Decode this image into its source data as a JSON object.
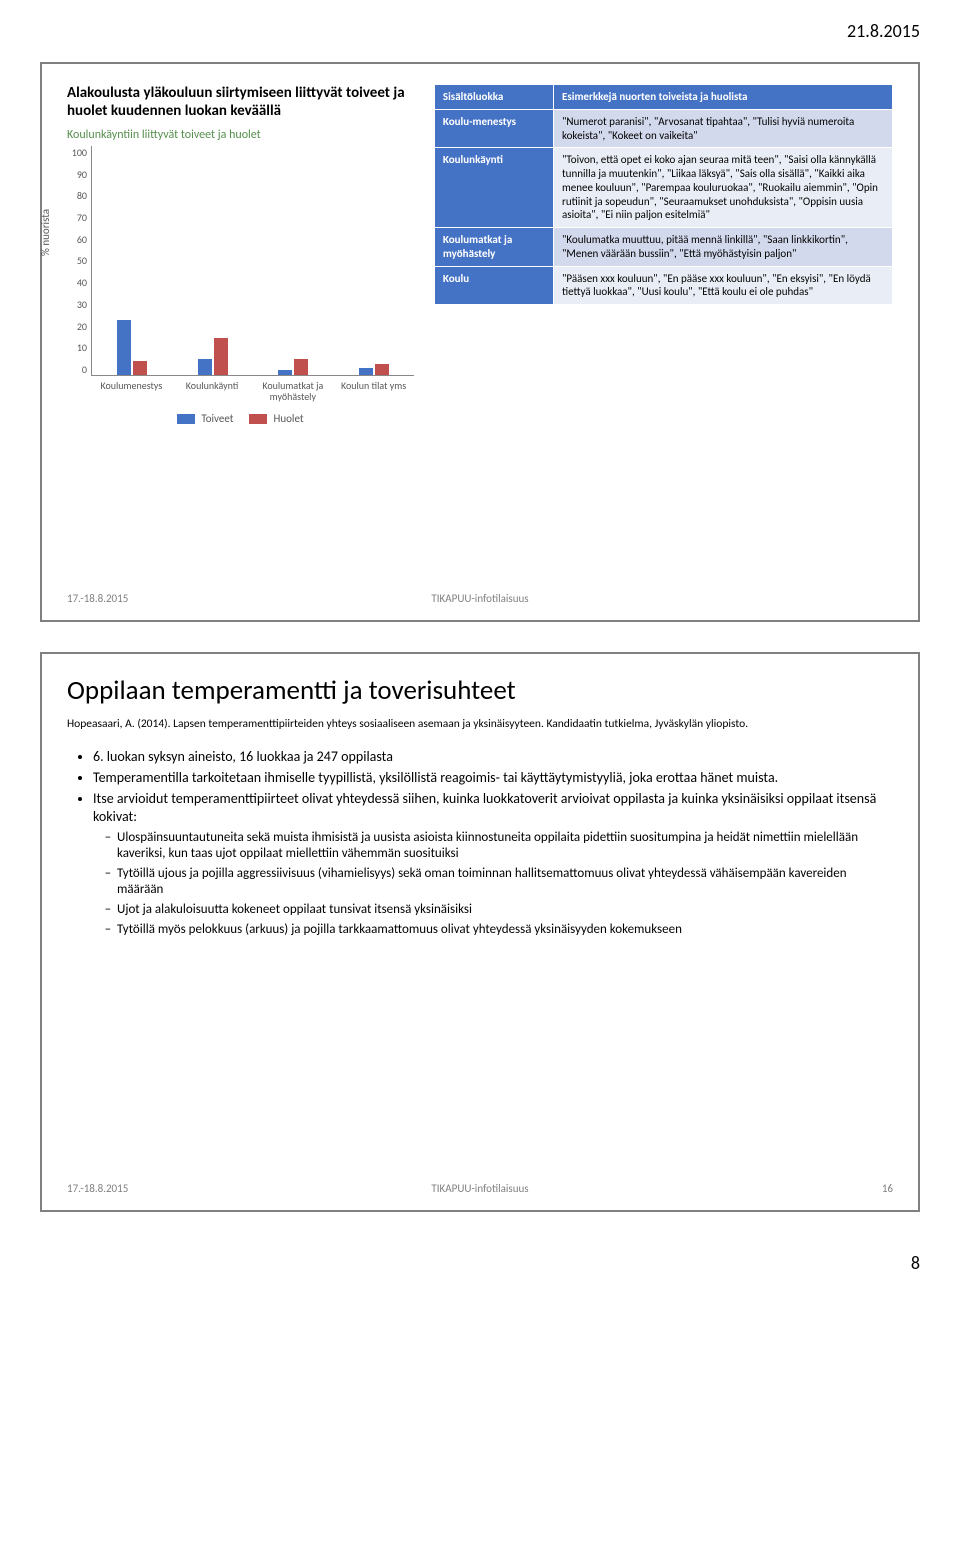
{
  "header_date": "21.8.2015",
  "page_number": "8",
  "slide1": {
    "footer_date": "17.-18.8.2015",
    "footer_center": "TIKAPUU-infotilaisuus",
    "chart": {
      "title": "Alakoulusta yläkouluun siirtymiseen liittyvät toiveet ja huolet kuudennen luokan keväällä",
      "subtitle": "Koulunkäyntiin liittyvät toiveet ja huolet",
      "ylabel": "% nuorista",
      "ylim_max": 100,
      "ytick_step": 10,
      "categories": [
        "Koulumenestys",
        "Koulunkäynti",
        "Koulumatkat ja myöhästely",
        "Koulun tilat yms"
      ],
      "series": [
        {
          "name": "Toiveet",
          "color_class": "blue",
          "color": "#4472c4",
          "values": [
            24,
            7,
            2,
            3
          ]
        },
        {
          "name": "Huolet",
          "color_class": "red",
          "color": "#c0504d",
          "values": [
            6,
            16,
            7,
            5
          ]
        }
      ]
    },
    "table": {
      "header": [
        "Sisältöluokka",
        "Esimerkkejä nuorten toiveista ja huolista"
      ],
      "rows": [
        {
          "k": "Koulu-menestys",
          "v": "\"Numerot paranisi\", \"Arvosanat tipahtaa\", \"Tulisi hyviä numeroita kokeista\", \"Kokeet on vaikeita\""
        },
        {
          "k": "Koulunkäynti",
          "v": "\"Toivon, että opet ei koko ajan seuraa mitä teen\", \"Saisi olla kännykällä tunnilla ja muutenkin\", \"Liikaa läksyä\", \"Sais olla sisällä\", \"Kaikki aika menee kouluun\", \"Parempaa kouluruokaa\", \"Ruokailu aiemmin\", \"Opin rutiinit ja sopeudun\", \"Seuraamukset unohduksista\", \"Oppisin uusia asioita\", \"Ei niin paljon esitelmiä\""
        },
        {
          "k": "Koulumatkat ja myöhästely",
          "v": "\"Koulumatka muuttuu, pitää mennä linkillä\", \"Saan linkkikortin\", \"Menen väärään bussiin\", \"Että myöhästyisin paljon\""
        },
        {
          "k": "Koulu",
          "v": "\"Pääsen xxx kouluun\", \"En pääse xxx kouluun\", \"En eksyisi\", \"En löydä tiettyä luokkaa\", \"Uusi koulu\", \"Että koulu ei ole puhdas\""
        }
      ]
    }
  },
  "slide2": {
    "title": "Oppilaan temperamentti ja toverisuhteet",
    "cite": "Hopeasaari, A. (2014). Lapsen temperamenttipiirteiden yhteys sosiaaliseen asemaan ja yksinäisyyteen. Kandidaatin tutkielma, Jyväskylän yliopisto.",
    "bullets": [
      "6. luokan syksyn aineisto, 16 luokkaa ja 247 oppilasta",
      "Temperamentilla tarkoitetaan ihmiselle tyypillistä, yksilöllistä reagoimis- tai käyttäytymistyyliä, joka erottaa hänet muista.",
      "Itse arvioidut temperamenttipiirteet olivat yhteydessä siihen, kuinka luokkatoverit arvioivat oppilasta ja kuinka yksinäisiksi oppilaat itsensä kokivat:"
    ],
    "subbullets": [
      "Ulospäinsuuntautuneita sekä muista ihmisistä ja uusista asioista kiinnostuneita oppilaita pidettiin suositumpina ja heidät nimettiin mielellään kaveriksi, kun taas ujot oppilaat miellettiin vähemmän suosituiksi",
      "Tytöillä ujous ja pojilla aggressiivisuus (vihamielisyys) sekä oman toiminnan hallitsemattomuus olivat yhteydessä vähäisempään kavereiden määrään",
      "Ujot ja alakuloisuutta kokeneet oppilaat tunsivat itsensä yksinäisiksi",
      "Tytöillä myös pelokkuus (arkuus) ja pojilla tarkkaamattomuus olivat yhteydessä yksinäisyyden kokemukseen"
    ],
    "footer_date": "17.-18.8.2015",
    "footer_center": "TIKAPUU-infotilaisuus",
    "footer_num": "16"
  }
}
